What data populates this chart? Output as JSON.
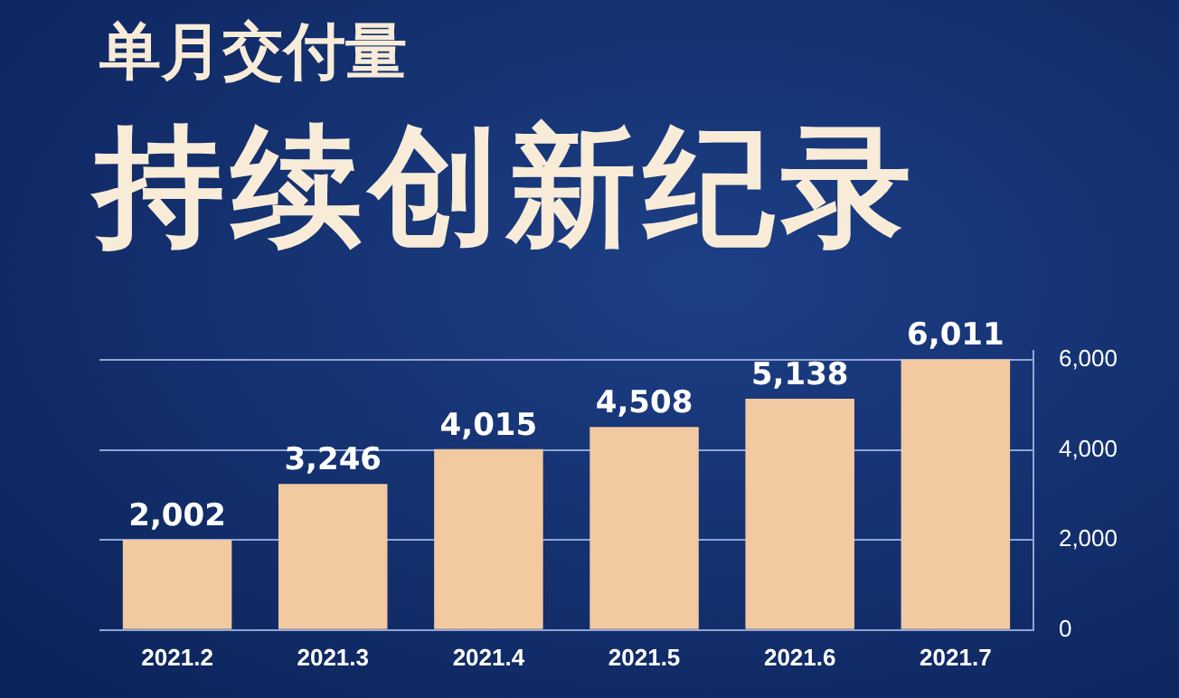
{
  "chart_data": {
    "type": "bar",
    "title": "单月交付量",
    "subtitle": "持续创新纪录",
    "categories": [
      "2021.2",
      "2021.3",
      "2021.4",
      "2021.5",
      "2021.6",
      "2021.7"
    ],
    "values": [
      2002,
      3246,
      4015,
      4508,
      5138,
      6011
    ],
    "color": "#f2c9a0",
    "value_labels": [
      "2,002",
      "3,246",
      "4,015",
      "4,508",
      "5,138",
      "6,011"
    ],
    "ylim": [
      0,
      6200
    ],
    "yticks": [
      0,
      {
        "value": 2000,
        "label": "2,000"
      },
      {
        "value": 4000,
        "label": "4,000"
      },
      {
        "value": 6000,
        "label": "6,000"
      }
    ],
    "grid": "y",
    "legend": false
  }
}
